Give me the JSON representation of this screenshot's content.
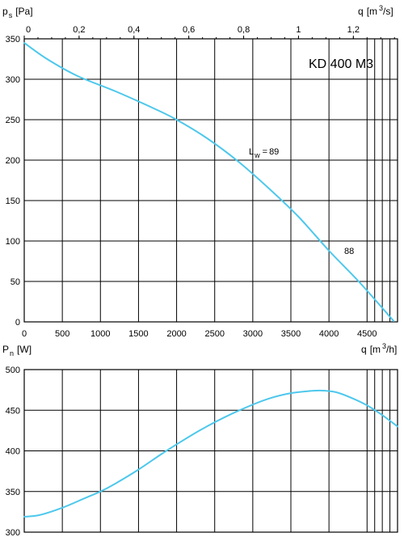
{
  "chart_data": [
    {
      "type": "line",
      "title": "KD 400 M3",
      "ylabel": {
        "symbol": "p",
        "sub": "s",
        "unit": "[Pa]"
      },
      "xlabel": {
        "symbol": "q",
        "unit": "[m",
        "sup": "3",
        "unit_end": "/h]"
      },
      "x2label": {
        "symbol": "q",
        "unit": "[m",
        "sup": "3",
        "unit_end": "/s]"
      },
      "xlim": [
        0,
        4900
      ],
      "ylim": [
        0,
        350
      ],
      "x_ticks": [
        0,
        500,
        1000,
        1500,
        2000,
        2500,
        3000,
        3500,
        4000,
        4500
      ],
      "x_minor_ticks": [
        4600,
        4700,
        4800,
        4900
      ],
      "y_ticks": [
        0,
        50,
        100,
        150,
        200,
        250,
        300,
        350
      ],
      "x2_ticks": [
        {
          "value": 0,
          "label": "0"
        },
        {
          "value": 0.2,
          "label": "0,2"
        },
        {
          "value": 0.4,
          "label": "0,4"
        },
        {
          "value": 0.6,
          "label": "0,6"
        },
        {
          "value": 0.8,
          "label": "0,8"
        },
        {
          "value": 1,
          "label": "1"
        },
        {
          "value": 1.2,
          "label": "1,2"
        }
      ],
      "x2_factor": 3600,
      "grid": true,
      "series": [
        {
          "color": "#4dc8ec",
          "x": [
            0,
            300,
            700,
            1200,
            1700,
            2000,
            2400,
            2800,
            3200,
            3600,
            4000,
            4400,
            4850
          ],
          "y": [
            345,
            325,
            304,
            285,
            264,
            250,
            227,
            199,
            166,
            130,
            88,
            49,
            1
          ]
        }
      ],
      "annotations": [
        {
          "text": "89",
          "label": "L",
          "sub": "w",
          "x": 3050,
          "y": 210
        },
        {
          "text": "88",
          "x": 4230,
          "y": 87
        }
      ]
    },
    {
      "type": "line",
      "ylabel": {
        "symbol": "P",
        "sub": "n",
        "unit": "[W]"
      },
      "xlim": [
        0,
        4900
      ],
      "ylim": [
        300,
        500
      ],
      "x_ticks": [
        0,
        500,
        1000,
        1500,
        2000,
        2500,
        3000,
        3500,
        4000,
        4500
      ],
      "x_minor_ticks": [
        4600,
        4700,
        4800,
        4900
      ],
      "y_ticks": [
        300,
        350,
        400,
        450,
        500
      ],
      "grid": true,
      "series": [
        {
          "color": "#4dc8ec",
          "x": [
            0,
            200,
            500,
            800,
            1000,
            1200,
            1500,
            1800,
            2000,
            2300,
            2600,
            2900,
            3200,
            3500,
            3800,
            3950,
            4100,
            4300,
            4500,
            4700,
            4900
          ],
          "y": [
            319,
            321,
            330,
            342,
            350,
            360,
            377,
            396,
            408,
            425,
            440,
            453,
            464,
            471,
            474,
            474,
            472,
            465,
            456,
            444,
            430
          ]
        }
      ]
    }
  ]
}
